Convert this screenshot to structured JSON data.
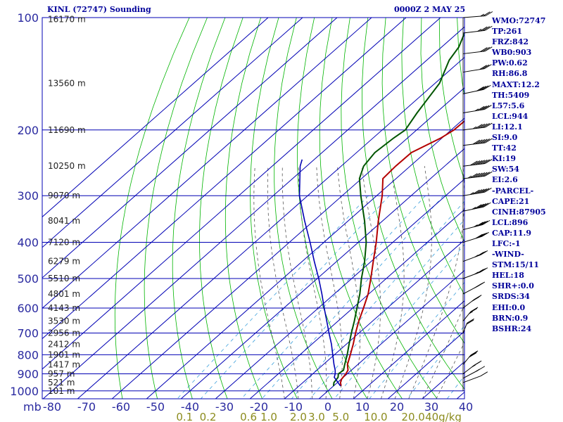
{
  "header": {
    "station": "KINL (72747) Sounding",
    "valid_time": "0000Z  2 MAY 25"
  },
  "indices": [
    "WMO:72747",
    "TP:261",
    "FRZ:842",
    "WB0:903",
    "PW:0.62",
    "RH:86.8",
    "MAXT:12.2",
    "TH:5409",
    "L57:5.6",
    "LCL:944",
    "LI:12.1",
    "SI:9.0",
    "TT:42",
    "KI:19",
    "SW:54",
    "EI:2.6",
    "-PARCEL-",
    "CAPE:21",
    "CINH:87905",
    "LCL:896",
    "CAP:11.9",
    "LFC:-1",
    "-WIND-",
    "STM:15/11",
    "HEL:18",
    "SHR+:0.0",
    "SRDS:34",
    "EHI:0.0",
    "BRN:0.9",
    "BSHR:24"
  ],
  "colors": {
    "grid": "#0000b4",
    "dry_adiabat": "#00b400",
    "moist_adiabat": "#555555",
    "mixing_ratio": "#3ca0dc",
    "temperature": "#b40000",
    "dewpoint": "#005500",
    "parcel": "#0000b4",
    "axis_text": "#2a2aa0",
    "mixing_label": "#8c8c1e",
    "wind_barb": "#000000"
  },
  "chart_data": {
    "type": "skew-t",
    "title": "KINL (72747) Sounding",
    "xlabel": "",
    "ylabel": "mb",
    "x_unit": "°C",
    "pressure_levels": [
      100,
      200,
      300,
      400,
      500,
      600,
      700,
      800,
      900,
      1000
    ],
    "temperature_ticks": [
      -80,
      -70,
      -60,
      -50,
      -40,
      -30,
      -20,
      -10,
      0,
      10,
      20,
      30,
      40
    ],
    "height_labels": [
      {
        "p": 101,
        "label": "16170 m"
      },
      {
        "p": 150,
        "label": "13560 m"
      },
      {
        "p": 200,
        "label": "11690 m"
      },
      {
        "p": 250,
        "label": "10250 m"
      },
      {
        "p": 300,
        "label": "9070 m"
      },
      {
        "p": 350,
        "label": "8041 m"
      },
      {
        "p": 400,
        "label": "7120 m"
      },
      {
        "p": 450,
        "label": "6279 m"
      },
      {
        "p": 500,
        "label": "5510 m"
      },
      {
        "p": 550,
        "label": "4801 m"
      },
      {
        "p": 600,
        "label": "4143 m"
      },
      {
        "p": 650,
        "label": "3530 m"
      },
      {
        "p": 700,
        "label": "2956 m"
      },
      {
        "p": 750,
        "label": "2412 m"
      },
      {
        "p": 800,
        "label": "1901 m"
      },
      {
        "p": 850,
        "label": "1417 m"
      },
      {
        "p": 900,
        "label": "957 m"
      },
      {
        "p": 950,
        "label": "521 m"
      },
      {
        "p": 1000,
        "label": "101 m"
      }
    ],
    "mixing_ratio_labels": [
      "0.1",
      "0.2",
      "0.6",
      "1.0",
      "2.0",
      "3.0",
      "5.0",
      "10.0",
      "20.0",
      "40g/kg"
    ],
    "mixing_ratio_values": [
      0.1,
      0.2,
      0.6,
      1.0,
      2.0,
      3.0,
      5.0,
      10.0,
      20.0,
      40.0
    ],
    "series": [
      {
        "key": "temperature",
        "points": [
          [
            970,
            2.2
          ],
          [
            950,
            0.9
          ],
          [
            930,
            0.1
          ],
          [
            900,
            -0.4
          ],
          [
            880,
            -1.0
          ],
          [
            850,
            -3.0
          ],
          [
            800,
            -5.4
          ],
          [
            750,
            -8.0
          ],
          [
            700,
            -11.0
          ],
          [
            650,
            -14.0
          ],
          [
            600,
            -16.9
          ],
          [
            550,
            -20.2
          ],
          [
            500,
            -24.5
          ],
          [
            450,
            -29.4
          ],
          [
            400,
            -34.8
          ],
          [
            350,
            -41.3
          ],
          [
            300,
            -48.4
          ],
          [
            270,
            -53.8
          ],
          [
            250,
            -54.2
          ],
          [
            230,
            -54.1
          ],
          [
            210,
            -50.3
          ],
          [
            200,
            -49.2
          ],
          [
            180,
            -48.9
          ],
          [
            150,
            -51.0
          ],
          [
            120,
            -53.4
          ],
          [
            100,
            -56.2
          ]
        ]
      },
      {
        "key": "dewpoint",
        "points": [
          [
            970,
            0.0
          ],
          [
            950,
            -1.0
          ],
          [
            920,
            -1.5
          ],
          [
            900,
            -2.6
          ],
          [
            880,
            -2.3
          ],
          [
            850,
            -3.8
          ],
          [
            800,
            -6.3
          ],
          [
            750,
            -9.2
          ],
          [
            700,
            -12.2
          ],
          [
            650,
            -15.3
          ],
          [
            600,
            -18.8
          ],
          [
            550,
            -22.6
          ],
          [
            500,
            -27.2
          ],
          [
            450,
            -31.9
          ],
          [
            400,
            -37.7
          ],
          [
            350,
            -45.3
          ],
          [
            300,
            -54.6
          ],
          [
            270,
            -60.6
          ],
          [
            250,
            -63.5
          ],
          [
            230,
            -64.7
          ],
          [
            210,
            -64.0
          ],
          [
            200,
            -63.3
          ],
          [
            180,
            -65.5
          ],
          [
            150,
            -68.7
          ],
          [
            130,
            -73.5
          ],
          [
            120,
            -75.0
          ],
          [
            100,
            -81.2
          ]
        ]
      },
      {
        "key": "parcel",
        "points": [
          [
            970,
            2.0
          ],
          [
            950,
            0.2
          ],
          [
            920,
            -2.6
          ],
          [
            900,
            -3.5
          ],
          [
            880,
            -4.7
          ],
          [
            850,
            -6.9
          ],
          [
            800,
            -10.5
          ],
          [
            750,
            -14.3
          ],
          [
            700,
            -18.7
          ],
          [
            650,
            -23.3
          ],
          [
            600,
            -28.3
          ],
          [
            550,
            -33.6
          ],
          [
            500,
            -39.6
          ],
          [
            450,
            -46.5
          ],
          [
            400,
            -54.0
          ],
          [
            350,
            -62.7
          ],
          [
            300,
            -72.4
          ],
          [
            250,
            -81.9
          ],
          [
            240,
            -83.5
          ]
        ]
      }
    ],
    "wind_barbs": [
      {
        "p": 100,
        "dir": 280,
        "spd": 25
      },
      {
        "p": 110,
        "dir": 285,
        "spd": 35
      },
      {
        "p": 125,
        "dir": 285,
        "spd": 30
      },
      {
        "p": 140,
        "dir": 290,
        "spd": 30
      },
      {
        "p": 160,
        "dir": 295,
        "spd": 40
      },
      {
        "p": 180,
        "dir": 290,
        "spd": 45
      },
      {
        "p": 200,
        "dir": 285,
        "spd": 55
      },
      {
        "p": 220,
        "dir": 285,
        "spd": 60
      },
      {
        "p": 250,
        "dir": 285,
        "spd": 70
      },
      {
        "p": 270,
        "dir": 285,
        "spd": 75
      },
      {
        "p": 300,
        "dir": 290,
        "spd": 65
      },
      {
        "p": 330,
        "dir": 295,
        "spd": 55
      },
      {
        "p": 370,
        "dir": 300,
        "spd": 45
      },
      {
        "p": 400,
        "dir": 305,
        "spd": 40
      },
      {
        "p": 450,
        "dir": 310,
        "spd": 35
      },
      {
        "p": 500,
        "dir": 310,
        "spd": 35
      },
      {
        "p": 550,
        "dir": 320,
        "spd": 30
      },
      {
        "p": 600,
        "dir": 330,
        "spd": 30
      },
      {
        "p": 650,
        "dir": 340,
        "spd": 25
      },
      {
        "p": 700,
        "dir": 350,
        "spd": 20
      },
      {
        "p": 850,
        "dir": 340,
        "spd": 30
      },
      {
        "p": 900,
        "dir": 330,
        "spd": 25
      },
      {
        "p": 925,
        "dir": 320,
        "spd": 15
      },
      {
        "p": 950,
        "dir": 310,
        "spd": 10
      }
    ]
  }
}
